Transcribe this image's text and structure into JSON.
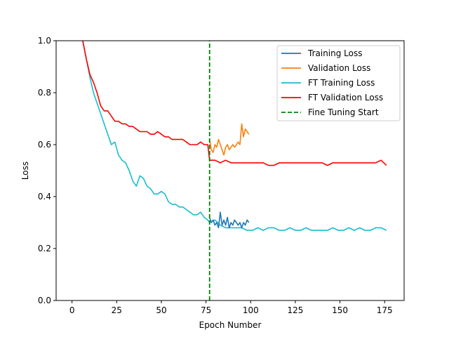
{
  "chart_data": {
    "type": "line",
    "title": "",
    "xlabel": "Epoch Number",
    "ylabel": "Loss",
    "xlim": [
      -8.9,
      185.9
    ],
    "ylim": [
      0.0,
      1.0
    ],
    "xticks": [
      0,
      25,
      50,
      75,
      100,
      125,
      150,
      175
    ],
    "yticks": [
      0.0,
      0.2,
      0.4,
      0.6,
      0.8,
      1.0
    ],
    "ytick_labels": [
      "0.0",
      "0.2",
      "0.4",
      "0.6",
      "0.8",
      "1.0"
    ],
    "grid": false,
    "legend_position": "top-right",
    "series": [
      {
        "name": "Training Loss",
        "color": "#1f77b4",
        "x": [
          77,
          78,
          79,
          80,
          81,
          82,
          83,
          84,
          85,
          86,
          87,
          88,
          89,
          90,
          91,
          92,
          93,
          94,
          95,
          96,
          97,
          98,
          99
        ],
        "y": [
          0.32,
          0.3,
          0.31,
          0.29,
          0.3,
          0.28,
          0.34,
          0.29,
          0.31,
          0.29,
          0.32,
          0.28,
          0.3,
          0.29,
          0.31,
          0.3,
          0.29,
          0.3,
          0.28,
          0.3,
          0.29,
          0.31,
          0.3
        ]
      },
      {
        "name": "Validation Loss",
        "color": "#ff7f0e",
        "x": [
          77,
          78,
          79,
          80,
          81,
          82,
          83,
          84,
          85,
          86,
          87,
          88,
          89,
          90,
          91,
          92,
          93,
          94,
          95,
          96,
          97,
          98,
          99
        ],
        "y": [
          0.62,
          0.58,
          0.57,
          0.6,
          0.59,
          0.62,
          0.6,
          0.58,
          0.56,
          0.59,
          0.6,
          0.58,
          0.59,
          0.6,
          0.59,
          0.6,
          0.61,
          0.6,
          0.68,
          0.63,
          0.66,
          0.65,
          0.64
        ]
      },
      {
        "name": "FT Training Loss",
        "color": "#17becf",
        "x": [
          6,
          8,
          10,
          12,
          14,
          16,
          18,
          20,
          22,
          24,
          26,
          28,
          30,
          32,
          34,
          36,
          38,
          40,
          42,
          44,
          46,
          48,
          50,
          52,
          54,
          56,
          58,
          60,
          62,
          64,
          66,
          68,
          70,
          72,
          74,
          76,
          77,
          80,
          83,
          86,
          89,
          92,
          95,
          98,
          101,
          104,
          107,
          110,
          113,
          116,
          119,
          122,
          125,
          128,
          131,
          134,
          137,
          140,
          143,
          146,
          149,
          152,
          155,
          158,
          161,
          164,
          167,
          170,
          173,
          176
        ],
        "y": [
          1.0,
          0.93,
          0.86,
          0.8,
          0.76,
          0.72,
          0.68,
          0.64,
          0.6,
          0.61,
          0.56,
          0.54,
          0.53,
          0.5,
          0.46,
          0.44,
          0.48,
          0.47,
          0.44,
          0.43,
          0.41,
          0.41,
          0.42,
          0.41,
          0.38,
          0.37,
          0.37,
          0.36,
          0.36,
          0.35,
          0.34,
          0.33,
          0.33,
          0.34,
          0.32,
          0.31,
          0.3,
          0.31,
          0.29,
          0.28,
          0.28,
          0.28,
          0.28,
          0.27,
          0.27,
          0.28,
          0.27,
          0.28,
          0.28,
          0.27,
          0.27,
          0.28,
          0.27,
          0.27,
          0.28,
          0.27,
          0.27,
          0.27,
          0.27,
          0.28,
          0.27,
          0.27,
          0.28,
          0.27,
          0.28,
          0.27,
          0.27,
          0.28,
          0.28,
          0.27
        ]
      },
      {
        "name": "FT Validation Loss",
        "color": "#ff0000",
        "x": [
          6,
          8,
          10,
          12,
          14,
          16,
          18,
          20,
          22,
          24,
          26,
          28,
          30,
          32,
          34,
          36,
          38,
          40,
          42,
          44,
          46,
          48,
          50,
          52,
          54,
          56,
          58,
          60,
          62,
          64,
          66,
          68,
          70,
          72,
          74,
          76,
          77,
          80,
          83,
          86,
          89,
          92,
          95,
          98,
          101,
          104,
          107,
          110,
          113,
          116,
          119,
          122,
          125,
          128,
          131,
          134,
          137,
          140,
          143,
          146,
          149,
          152,
          155,
          158,
          161,
          164,
          167,
          170,
          173,
          176
        ],
        "y": [
          1.0,
          0.93,
          0.87,
          0.84,
          0.8,
          0.75,
          0.73,
          0.73,
          0.71,
          0.69,
          0.69,
          0.68,
          0.68,
          0.67,
          0.67,
          0.66,
          0.65,
          0.65,
          0.65,
          0.64,
          0.64,
          0.65,
          0.64,
          0.63,
          0.63,
          0.62,
          0.62,
          0.62,
          0.62,
          0.61,
          0.6,
          0.6,
          0.6,
          0.61,
          0.6,
          0.6,
          0.54,
          0.54,
          0.53,
          0.54,
          0.53,
          0.53,
          0.53,
          0.53,
          0.53,
          0.53,
          0.53,
          0.52,
          0.52,
          0.53,
          0.53,
          0.53,
          0.53,
          0.53,
          0.53,
          0.53,
          0.53,
          0.53,
          0.52,
          0.53,
          0.53,
          0.53,
          0.53,
          0.53,
          0.53,
          0.53,
          0.53,
          0.53,
          0.54,
          0.52
        ]
      },
      {
        "name": "Fine Tuning Start",
        "color": "#008000",
        "style": "dashed",
        "x": [
          77,
          77
        ],
        "y": [
          0.0,
          1.0
        ]
      }
    ]
  }
}
